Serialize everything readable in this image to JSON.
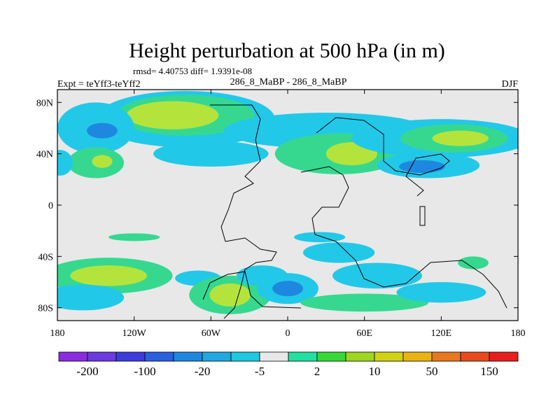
{
  "chart_data": {
    "type": "heatmap",
    "title": "Height perturbation at 500 hPa (in m)",
    "stats_line": "rmsd= 4.40753 diff= 1.9391e-08",
    "experiment_label": "Expt = teYff3-teYff2",
    "center_label": "286_8_MaBP - 286_8_MaBP",
    "season": "DJF",
    "x_ticks": [
      {
        "lon": -180,
        "label": "180"
      },
      {
        "lon": -120,
        "label": "120W"
      },
      {
        "lon": -60,
        "label": "60W"
      },
      {
        "lon": 0,
        "label": "0"
      },
      {
        "lon": 60,
        "label": "60E"
      },
      {
        "lon": 120,
        "label": "120E"
      },
      {
        "lon": 180,
        "label": "180"
      }
    ],
    "y_ticks": [
      {
        "lat": 80,
        "label": "80N"
      },
      {
        "lat": 40,
        "label": "40N"
      },
      {
        "lat": 0,
        "label": "0"
      },
      {
        "lat": -40,
        "label": "40S"
      },
      {
        "lat": -80,
        "label": "80S"
      }
    ],
    "xlim": [
      -180,
      180
    ],
    "ylim": [
      -90,
      90
    ],
    "colorbar": {
      "colors": [
        "#8a2be2",
        "#6a3ae0",
        "#3c3cdc",
        "#2a5fe0",
        "#1e88e0",
        "#22a8e0",
        "#1ec8e0",
        "#e8e8e8",
        "#22e0a0",
        "#36d836",
        "#9ed620",
        "#d2d214",
        "#e8b414",
        "#e8781e",
        "#e84a1e",
        "#e81e1e"
      ],
      "labels": [
        {
          "boundary": 1,
          "text": "-200"
        },
        {
          "boundary": 3,
          "text": "-100"
        },
        {
          "boundary": 5,
          "text": "-20"
        },
        {
          "boundary": 7,
          "text": "-5"
        },
        {
          "boundary": 9,
          "text": "2"
        },
        {
          "boundary": 11,
          "text": "10"
        },
        {
          "boundary": 13,
          "text": "50"
        },
        {
          "boundary": 15,
          "text": "150"
        }
      ]
    },
    "anomaly_regions": [
      {
        "lon": -80,
        "lat": 67,
        "rlon": 70,
        "rlat": 22,
        "level": -5
      },
      {
        "lon": -80,
        "lat": 70,
        "rlon": 54,
        "rlat": 16,
        "level": 2
      },
      {
        "lon": -90,
        "lat": 70,
        "rlon": 36,
        "rlat": 11,
        "level": 10
      },
      {
        "lon": -150,
        "lat": 60,
        "rlon": 30,
        "rlat": 20,
        "level": -5
      },
      {
        "lon": -145,
        "lat": 58,
        "rlon": 12,
        "rlat": 6,
        "level": -10
      },
      {
        "lon": -60,
        "lat": 40,
        "rlon": 45,
        "rlat": 10,
        "level": -5
      },
      {
        "lon": -150,
        "lat": 33,
        "rlon": 22,
        "rlat": 12,
        "level": 2
      },
      {
        "lon": -145,
        "lat": 34,
        "rlon": 8,
        "rlat": 5,
        "level": 10
      },
      {
        "lon": -178,
        "lat": 33,
        "rlon": 10,
        "rlat": 10,
        "level": -5
      },
      {
        "lon": 30,
        "lat": 58,
        "rlon": 80,
        "rlat": 14,
        "level": -5
      },
      {
        "lon": 40,
        "lat": 40,
        "rlon": 50,
        "rlat": 16,
        "level": 2
      },
      {
        "lon": 50,
        "lat": 40,
        "rlon": 20,
        "rlat": 9,
        "level": 10
      },
      {
        "lon": 120,
        "lat": 52,
        "rlon": 70,
        "rlat": 15,
        "level": -5
      },
      {
        "lon": 130,
        "lat": 52,
        "rlon": 42,
        "rlat": 11,
        "level": 2
      },
      {
        "lon": 135,
        "lat": 52,
        "rlon": 22,
        "rlat": 6,
        "level": 10
      },
      {
        "lon": 110,
        "lat": 31,
        "rlon": 40,
        "rlat": 10,
        "level": -5
      },
      {
        "lon": 105,
        "lat": 30,
        "rlon": 18,
        "rlat": 5,
        "level": -10
      },
      {
        "lon": -140,
        "lat": -55,
        "rlon": 50,
        "rlat": 14,
        "level": 2
      },
      {
        "lon": -140,
        "lat": -55,
        "rlon": 30,
        "rlat": 8,
        "level": 10
      },
      {
        "lon": -160,
        "lat": -72,
        "rlon": 32,
        "rlat": 10,
        "level": -5
      },
      {
        "lon": -120,
        "lat": -25,
        "rlon": 20,
        "rlat": 3,
        "level": 2
      },
      {
        "lon": -70,
        "lat": -57,
        "rlon": 18,
        "rlat": 6,
        "level": -5
      },
      {
        "lon": -45,
        "lat": -70,
        "rlon": 32,
        "rlat": 15,
        "level": 2
      },
      {
        "lon": -45,
        "lat": -70,
        "rlon": 16,
        "rlat": 9,
        "level": 10
      },
      {
        "lon": -20,
        "lat": -55,
        "rlon": 20,
        "rlat": 8,
        "level": -5
      },
      {
        "lon": 0,
        "lat": -65,
        "rlon": 24,
        "rlat": 12,
        "level": -5
      },
      {
        "lon": 0,
        "lat": -65,
        "rlon": 12,
        "rlat": 6,
        "level": -10
      },
      {
        "lon": 40,
        "lat": -37,
        "rlon": 28,
        "rlat": 8,
        "level": -5
      },
      {
        "lon": 25,
        "lat": -25,
        "rlon": 20,
        "rlat": 4,
        "level": -5
      },
      {
        "lon": 70,
        "lat": -55,
        "rlon": 35,
        "rlat": 10,
        "level": -5
      },
      {
        "lon": 60,
        "lat": -76,
        "rlon": 50,
        "rlat": 7,
        "level": 2
      },
      {
        "lon": 145,
        "lat": -45,
        "rlon": 12,
        "rlat": 5,
        "level": 2
      },
      {
        "lon": 120,
        "lat": -68,
        "rlon": 35,
        "rlat": 8,
        "level": -5
      }
    ]
  }
}
